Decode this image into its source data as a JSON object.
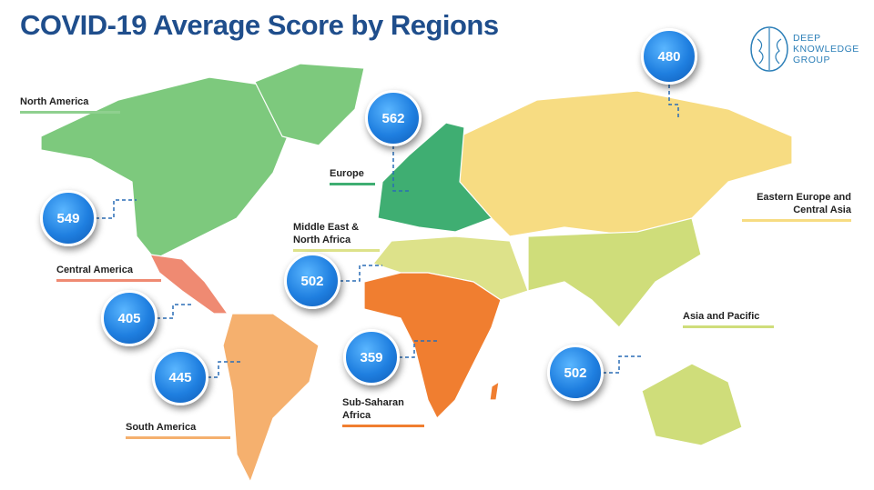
{
  "title": "COVID-19 Average Score by Regions",
  "logo": "DEEP KNOWLEDGE GROUP",
  "regions": [
    {
      "name": "North America",
      "score": "549"
    },
    {
      "name": "Europe",
      "score": "562"
    },
    {
      "name": "Eastern Europe and Central Asia",
      "score": "480"
    },
    {
      "name": "Middle East & North Africa",
      "score": "502"
    },
    {
      "name": "Central America",
      "score": "405"
    },
    {
      "name": "Asia and Pacific",
      "score": "502"
    },
    {
      "name": "Sub-Saharan Africa",
      "score": "359"
    },
    {
      "name": "South America",
      "score": "445"
    }
  ]
}
